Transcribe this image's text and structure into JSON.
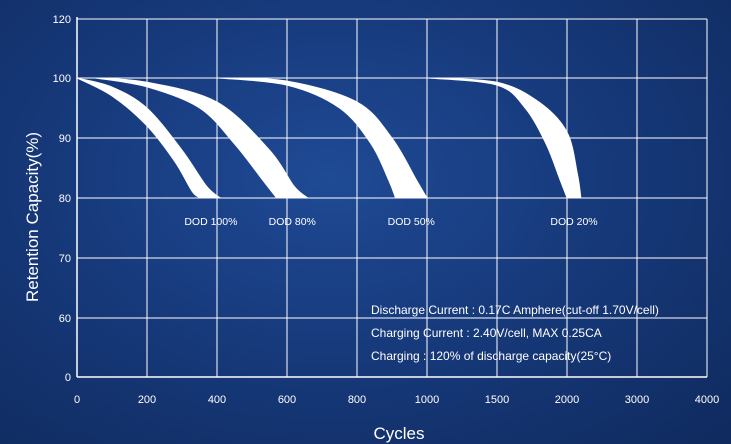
{
  "chart_data": {
    "type": "area",
    "xlabel": "Cycles",
    "ylabel": "Retention Capacity(%)",
    "ylim": [
      0,
      120
    ],
    "y_ticks": [
      "0",
      "60",
      "70",
      "80",
      "90",
      "100",
      "120"
    ],
    "x_ticks": [
      "0",
      "200",
      "400",
      "600",
      "800",
      "1000",
      "1500",
      "2000",
      "3000",
      "4000"
    ],
    "grid": true,
    "series": [
      {
        "name": "DOD 100%",
        "upper": [
          [
            0,
            100
          ],
          [
            100,
            98.5
          ],
          [
            200,
            95
          ],
          [
            300,
            88
          ],
          [
            370,
            82
          ],
          [
            410,
            80
          ]
        ],
        "lower": [
          [
            0,
            100
          ],
          [
            100,
            97
          ],
          [
            200,
            92
          ],
          [
            280,
            86
          ],
          [
            330,
            81
          ],
          [
            355,
            80
          ]
        ]
      },
      {
        "name": "DOD 80%",
        "upper": [
          [
            50,
            100
          ],
          [
            200,
            99.3
          ],
          [
            400,
            96
          ],
          [
            550,
            88
          ],
          [
            620,
            82
          ],
          [
            660,
            80
          ]
        ],
        "lower": [
          [
            50,
            100
          ],
          [
            200,
            98.5
          ],
          [
            350,
            95
          ],
          [
            450,
            89
          ],
          [
            530,
            83
          ],
          [
            570,
            80
          ]
        ]
      },
      {
        "name": "DOD 50%",
        "upper": [
          [
            400,
            100
          ],
          [
            600,
            99.5
          ],
          [
            800,
            96
          ],
          [
            900,
            90
          ],
          [
            970,
            83
          ],
          [
            1000,
            80
          ]
        ],
        "lower": [
          [
            400,
            100
          ],
          [
            600,
            98.8
          ],
          [
            750,
            95
          ],
          [
            840,
            89
          ],
          [
            890,
            83
          ],
          [
            910,
            80
          ]
        ]
      },
      {
        "name": "DOD 20%",
        "upper": [
          [
            1000,
            100
          ],
          [
            1500,
            99.3
          ],
          [
            1800,
            96
          ],
          [
            2000,
            91
          ],
          [
            2150,
            84
          ],
          [
            2200,
            80
          ]
        ],
        "lower": [
          [
            1000,
            100
          ],
          [
            1500,
            98.8
          ],
          [
            1700,
            95
          ],
          [
            1850,
            89
          ],
          [
            1950,
            83
          ],
          [
            2000,
            80
          ]
        ]
      }
    ],
    "band_label_y": 78.5,
    "notes": [
      "Discharge Current : 0.17C Amphere(cut-off 1.70V/cell)",
      "Charging Current : 2.40V/cell, MAX 0.25CA",
      "Charging : 120% of discharge capacity(25°C)"
    ],
    "colors": {
      "background": "#173a7c",
      "grid": "#ffffff",
      "band": "#ffffff",
      "text": "#ffffff"
    }
  }
}
